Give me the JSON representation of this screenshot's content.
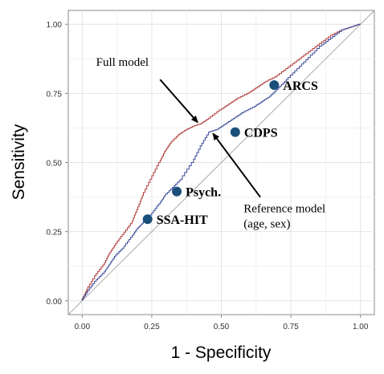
{
  "chart_data": {
    "type": "line",
    "title": "",
    "xlabel": "1 - Specificity",
    "ylabel": "Sensitivity",
    "xlim": [
      -0.05,
      1.05
    ],
    "ylim": [
      -0.05,
      1.05
    ],
    "x_ticks": [
      0.0,
      0.25,
      0.5,
      0.75,
      1.0
    ],
    "y_ticks": [
      0.0,
      0.25,
      0.5,
      0.75,
      1.0
    ],
    "x_tick_labels": [
      "0.00",
      "0.25",
      "0.50",
      "0.75",
      "1.00"
    ],
    "y_tick_labels": [
      "0.00",
      "0.25",
      "0.50",
      "0.75",
      "1.00"
    ],
    "grid": true,
    "series": [
      {
        "name": "Full model",
        "color": "#b03a3a",
        "x": [
          0.0,
          0.02,
          0.05,
          0.08,
          0.1,
          0.12,
          0.15,
          0.18,
          0.2,
          0.22,
          0.25,
          0.28,
          0.3,
          0.32,
          0.35,
          0.38,
          0.4,
          0.43,
          0.46,
          0.5,
          0.53,
          0.56,
          0.6,
          0.63,
          0.66,
          0.7,
          0.74,
          0.78,
          0.82,
          0.86,
          0.9,
          0.94,
          0.97,
          1.0
        ],
        "y": [
          0.0,
          0.04,
          0.09,
          0.13,
          0.17,
          0.2,
          0.24,
          0.28,
          0.33,
          0.38,
          0.44,
          0.5,
          0.54,
          0.57,
          0.6,
          0.62,
          0.63,
          0.64,
          0.66,
          0.69,
          0.71,
          0.73,
          0.75,
          0.77,
          0.79,
          0.81,
          0.84,
          0.87,
          0.9,
          0.93,
          0.96,
          0.98,
          0.99,
          1.0
        ]
      },
      {
        "name": "Reference model (age, sex)",
        "color": "#3a4a9a",
        "x": [
          0.0,
          0.02,
          0.05,
          0.08,
          0.1,
          0.12,
          0.15,
          0.18,
          0.2,
          0.22,
          0.25,
          0.28,
          0.3,
          0.33,
          0.36,
          0.4,
          0.43,
          0.46,
          0.49,
          0.52,
          0.55,
          0.58,
          0.62,
          0.65,
          0.68,
          0.71,
          0.74,
          0.78,
          0.82,
          0.86,
          0.9,
          0.94,
          0.97,
          1.0
        ],
        "y": [
          0.0,
          0.03,
          0.07,
          0.1,
          0.13,
          0.16,
          0.19,
          0.23,
          0.26,
          0.28,
          0.31,
          0.35,
          0.38,
          0.41,
          0.44,
          0.5,
          0.56,
          0.61,
          0.62,
          0.64,
          0.66,
          0.68,
          0.7,
          0.72,
          0.74,
          0.77,
          0.8,
          0.84,
          0.88,
          0.92,
          0.95,
          0.98,
          0.99,
          1.0
        ]
      }
    ],
    "reference_line": {
      "x": [
        -0.05,
        1.05
      ],
      "y": [
        -0.05,
        1.05
      ],
      "color": "#aaaaaa"
    },
    "points": [
      {
        "label": "ARCS",
        "x": 0.69,
        "y": 0.78,
        "color": "#1a4f7a"
      },
      {
        "label": "CDPS",
        "x": 0.55,
        "y": 0.61,
        "color": "#1a4f7a"
      },
      {
        "label": "Psych.",
        "x": 0.34,
        "y": 0.395,
        "color": "#1a4f7a"
      },
      {
        "label": "SSA-HIT",
        "x": 0.235,
        "y": 0.295,
        "color": "#1a4f7a"
      }
    ],
    "annotations": [
      {
        "lines": [
          "Full model"
        ],
        "text_x": 0.05,
        "text_y": 0.85,
        "arrow_from": [
          0.28,
          0.8
        ],
        "arrow_to": [
          0.415,
          0.645
        ]
      },
      {
        "lines": [
          "Reference model",
          "(age, sex)"
        ],
        "text_x": 0.58,
        "text_y": 0.32,
        "arrow_from": [
          0.64,
          0.375
        ],
        "arrow_to": [
          0.47,
          0.605
        ]
      }
    ]
  }
}
